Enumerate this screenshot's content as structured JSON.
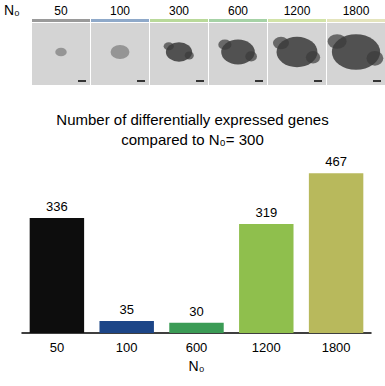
{
  "panel": {
    "label": "N₀",
    "conditions": [
      50,
      100,
      300,
      600,
      1200,
      1800
    ]
  },
  "chart_data": {
    "type": "bar",
    "title": "Number of differentially expressed genes\ncompared to N₀= 300",
    "x_label": "N₀",
    "categories": [
      "50",
      "100",
      "600",
      "1200",
      "1800"
    ],
    "values": [
      336,
      35,
      30,
      319,
      467
    ],
    "colors": [
      "#0d0d0d",
      "#1c4587",
      "#3b9b55",
      "#8fbf4d",
      "#b8b95c"
    ],
    "ylim": [
      0,
      500
    ],
    "grid": false,
    "data_labels": true,
    "tick_labels": "x"
  }
}
